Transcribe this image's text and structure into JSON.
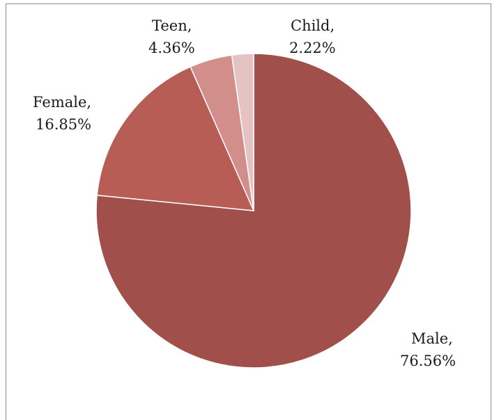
{
  "chart_data": {
    "type": "pie",
    "title": "",
    "legend": "none",
    "start_angle_deg": 0,
    "direction": "clockwise",
    "slices": [
      {
        "label": "Male",
        "value_label": "76.56%",
        "value": 76.56,
        "color": "#a04f4a"
      },
      {
        "label": "Female",
        "value_label": "16.85%",
        "value": 16.85,
        "color": "#b85c56"
      },
      {
        "label": "Teen",
        "value_label": "4.36%",
        "value": 4.36,
        "color": "#d28e8b"
      },
      {
        "label": "Child",
        "value_label": "2.22%",
        "value": 2.22,
        "color": "#e5c3c2"
      }
    ],
    "data_labels": [
      {
        "name": "Male,",
        "value": "76.56%"
      },
      {
        "name": "Female,",
        "value": "16.85%"
      },
      {
        "name": "Teen,",
        "value": "4.36%"
      },
      {
        "name": "Child,",
        "value": "2.22%"
      }
    ]
  }
}
